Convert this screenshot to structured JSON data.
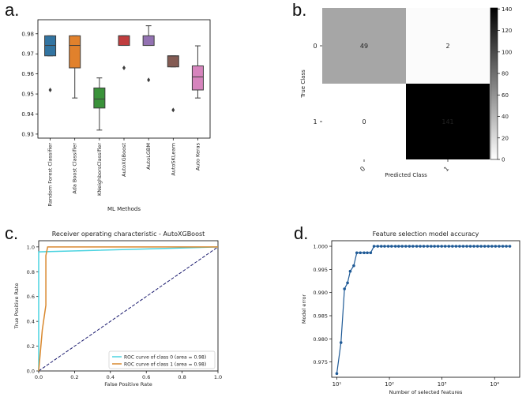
{
  "panels": {
    "a": "a.",
    "b": "b.",
    "c": "c.",
    "d": "d."
  },
  "chart_data": [
    {
      "id": "a",
      "type": "box",
      "title": "",
      "xlabel": "ML Methods",
      "ylabel": "",
      "ylim": [
        0.928,
        0.987
      ],
      "yticks": [
        0.93,
        0.94,
        0.95,
        0.96,
        0.97,
        0.98
      ],
      "categories": [
        "Random Forest Classifier",
        "Ada Boost Classifier",
        "KNeighborsClassifier",
        "AutoXGBoost",
        "AutoLGBM",
        "AutoSKLearn",
        "Auto Keras"
      ],
      "boxes": [
        {
          "q1": 0.969,
          "median": 0.9742,
          "q3": 0.979,
          "whisker_low": 0.969,
          "whisker_high": 0.979,
          "outliers": [
            0.952
          ],
          "color": "#3274a1"
        },
        {
          "q1": 0.963,
          "median": 0.9742,
          "q3": 0.979,
          "whisker_low": 0.948,
          "whisker_high": 0.979,
          "outliers": [],
          "color": "#e1812c"
        },
        {
          "q1": 0.943,
          "median": 0.9475,
          "q3": 0.953,
          "whisker_low": 0.932,
          "whisker_high": 0.958,
          "outliers": [],
          "color": "#3a923a"
        },
        {
          "q1": 0.9742,
          "median": 0.979,
          "q3": 0.979,
          "whisker_low": 0.9742,
          "whisker_high": 0.979,
          "outliers": [
            0.963
          ],
          "color": "#c03d3e"
        },
        {
          "q1": 0.9742,
          "median": 0.9742,
          "q3": 0.979,
          "whisker_low": 0.9742,
          "whisker_high": 0.984,
          "outliers": [
            0.957
          ],
          "color": "#9372b2"
        },
        {
          "q1": 0.9635,
          "median": 0.969,
          "q3": 0.969,
          "whisker_low": 0.9635,
          "whisker_high": 0.969,
          "outliers": [
            0.942
          ],
          "color": "#845b53"
        },
        {
          "q1": 0.952,
          "median": 0.9585,
          "q3": 0.964,
          "whisker_low": 0.948,
          "whisker_high": 0.974,
          "outliers": [],
          "color": "#d684bd"
        }
      ]
    },
    {
      "id": "b",
      "type": "heatmap",
      "title": "",
      "xlabel": "Predicted Class",
      "ylabel": "True Class",
      "xticks": [
        "0",
        "1"
      ],
      "yticks": [
        "0",
        "1"
      ],
      "matrix": [
        [
          49,
          2
        ],
        [
          0,
          141
        ]
      ],
      "colorbar": {
        "min": 0,
        "max": 141,
        "ticks": [
          0,
          20,
          40,
          60,
          80,
          100,
          120,
          140
        ]
      }
    },
    {
      "id": "c",
      "type": "line",
      "title": "Receiver operating characteristic - AutoXGBoost",
      "xlabel": "False Positive Rate",
      "ylabel": "True Positive Rate",
      "xlim": [
        0,
        1
      ],
      "ylim": [
        0,
        1.05
      ],
      "xticks": [
        "0.0",
        "0.2",
        "0.4",
        "0.6",
        "0.8",
        "1.0"
      ],
      "yticks": [
        "0.0",
        "0.2",
        "0.4",
        "0.6",
        "0.8",
        "1.0"
      ],
      "series": [
        {
          "name": "ROC curve of class 0 (area = 0.98)",
          "color": "#4cd3e0",
          "x": [
            0,
            0,
            1
          ],
          "y": [
            0,
            0.96,
            1.0
          ]
        },
        {
          "name": "ROC curve of class 1 (area = 0.98)",
          "color": "#d9882e",
          "x": [
            0,
            0.02,
            0.04,
            0.04,
            0.05,
            1
          ],
          "y": [
            0,
            0.33,
            0.53,
            0.93,
            1.0,
            1.0
          ]
        }
      ],
      "diagonal": {
        "x": [
          0,
          1
        ],
        "y": [
          0,
          1
        ],
        "color": "#1a1a6e"
      },
      "legend_position": "lower-right"
    },
    {
      "id": "d",
      "type": "line",
      "title": "Feature selection model accuracy",
      "xlabel": "Number of selected features",
      "ylabel": "Model error",
      "xscale": "log",
      "xlim": [
        8,
        30000
      ],
      "ylim": [
        0.9717,
        1.0012
      ],
      "xticks": [
        {
          "value": 10,
          "label": "10¹"
        },
        {
          "value": 100,
          "label": "10²"
        },
        {
          "value": 1000,
          "label": "10³"
        },
        {
          "value": 10000,
          "label": "10⁴"
        }
      ],
      "yticks": [
        0.975,
        0.98,
        0.985,
        0.99,
        0.995,
        1.0
      ],
      "series": [
        {
          "color": "#1f5a96",
          "x": [
            10,
            12,
            14,
            16,
            18,
            21,
            24,
            28,
            33,
            38,
            44,
            51,
            60,
            70,
            81,
            95,
            110,
            130,
            150,
            175,
            205,
            240,
            280,
            330,
            385,
            450,
            530,
            620,
            720,
            840,
            985,
            1150,
            1350,
            1580,
            1850,
            2160,
            2530,
            2960,
            3460,
            4050,
            4740,
            5540,
            6490,
            7600,
            8890,
            10400,
            12200,
            14300,
            16700,
            19500
          ],
          "y": [
            0.9725,
            0.9792,
            0.9908,
            0.9921,
            0.9946,
            0.9958,
            0.9986,
            0.9986,
            0.9986,
            0.9986,
            0.9986,
            1.0,
            1.0,
            1.0,
            1.0,
            1.0,
            1.0,
            1.0,
            1.0,
            1.0,
            1.0,
            1.0,
            1.0,
            1.0,
            1.0,
            1.0,
            1.0,
            1.0,
            1.0,
            1.0,
            1.0,
            1.0,
            1.0,
            1.0,
            1.0,
            1.0,
            1.0,
            1.0,
            1.0,
            1.0,
            1.0,
            1.0,
            1.0,
            1.0,
            1.0,
            1.0,
            1.0,
            1.0,
            1.0,
            1.0
          ]
        }
      ]
    }
  ]
}
